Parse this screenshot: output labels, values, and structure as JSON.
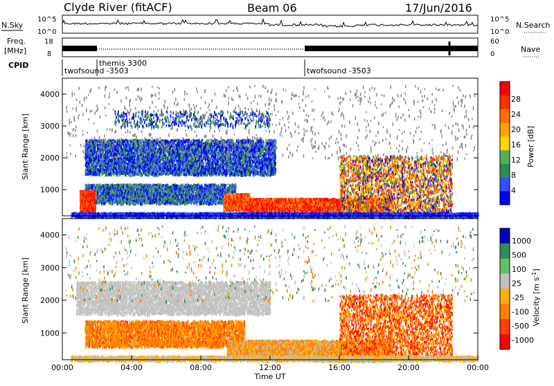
{
  "header": {
    "station": "Clyde River (fitACF)",
    "beam": "Beam 06",
    "date": "17/Jun/2016"
  },
  "summary": {
    "nsky_label": "N.Sky",
    "nsky_ticks": [
      "10^5",
      "10^0"
    ],
    "nsearch_label": "N.Search",
    "nsearch_ticks": [
      "10^5",
      "10^0"
    ],
    "freq_label_1": "Freq.",
    "freq_label_2": "[MHz]",
    "freq_ticks": [
      "18",
      "8"
    ],
    "nave_label": "Nave",
    "nave_ticks": [
      "60",
      "0"
    ],
    "cpid_label": "CPID",
    "cpid_segments": [
      {
        "label": "twofsound -3503",
        "start": "00:00"
      },
      {
        "label": "themis 3300",
        "start": "02:00"
      },
      {
        "label": "twofsound -3503",
        "start": "14:00"
      }
    ]
  },
  "chart_data": [
    {
      "type": "heatmap",
      "parameter": "Power",
      "ylabel": "Slant Range [km]",
      "ylim": [
        180,
        4500
      ],
      "yticks": [
        "1000",
        "2000",
        "3000",
        "4000"
      ],
      "xlim": [
        "00:00",
        "00:00"
      ],
      "colorbar_label": "Power [dB]",
      "colorbar_ticks": [
        "28",
        "24",
        "20",
        "16",
        "12",
        "8",
        "4"
      ],
      "colorscale": [
        "#0000ff",
        "#3050ff",
        "#2e8c55",
        "#55b055",
        "#ffd700",
        "#ffa500",
        "#ff7000",
        "#ff3000",
        "#ff0000"
      ],
      "features": [
        {
          "start_h": 1.0,
          "end_h": 1.9,
          "range_km": [
            200,
            1000
          ],
          "level": "red"
        },
        {
          "start_h": 9.3,
          "end_h": 10.8,
          "range_km": [
            400,
            900
          ],
          "level": "orange-red"
        },
        {
          "start_h": 10.8,
          "end_h": 19.0,
          "range_km": [
            300,
            750
          ],
          "level": "red"
        },
        {
          "start_h": 1.3,
          "end_h": 12.3,
          "range_km": [
            1500,
            2600
          ],
          "level": "blue"
        },
        {
          "start_h": 1.3,
          "end_h": 10.0,
          "range_km": [
            600,
            1200
          ],
          "level": "blue-green"
        },
        {
          "start_h": 16.0,
          "end_h": 22.5,
          "range_km": [
            300,
            2100
          ],
          "level": "orange-red"
        }
      ]
    },
    {
      "type": "heatmap",
      "parameter": "Velocity",
      "ylabel": "Slant Range [km]",
      "ylim": [
        180,
        4500
      ],
      "yticks": [
        "1000",
        "2000",
        "3000",
        "4000"
      ],
      "xlabel": "Time UT",
      "xticks": [
        "00:00",
        "04:00",
        "08:00",
        "12:00",
        "16:00",
        "20:00",
        "00:00"
      ],
      "colorbar_label": "Velocity [m s^-1]",
      "colorbar_ticks": [
        "1000",
        "500",
        "100",
        "25",
        "-25",
        "-100",
        "-500",
        "-1000"
      ],
      "colorscale": [
        "#0000c8",
        "#2e8b57",
        "#66c060",
        "#c0c0c0",
        "#ffb000",
        "#ff8000",
        "#ff4000",
        "#ff0000"
      ],
      "features": [
        {
          "start_h": 0.8,
          "end_h": 12.0,
          "range_km": [
            1600,
            2600
          ],
          "level": "gray"
        },
        {
          "start_h": 1.3,
          "end_h": 10.5,
          "range_km": [
            600,
            1400
          ],
          "level": "orange"
        },
        {
          "start_h": 9.5,
          "end_h": 19.0,
          "range_km": [
            300,
            800
          ],
          "level": "orange"
        },
        {
          "start_h": 16.0,
          "end_h": 22.5,
          "range_km": [
            300,
            2200
          ],
          "level": "orange-red"
        }
      ]
    }
  ]
}
